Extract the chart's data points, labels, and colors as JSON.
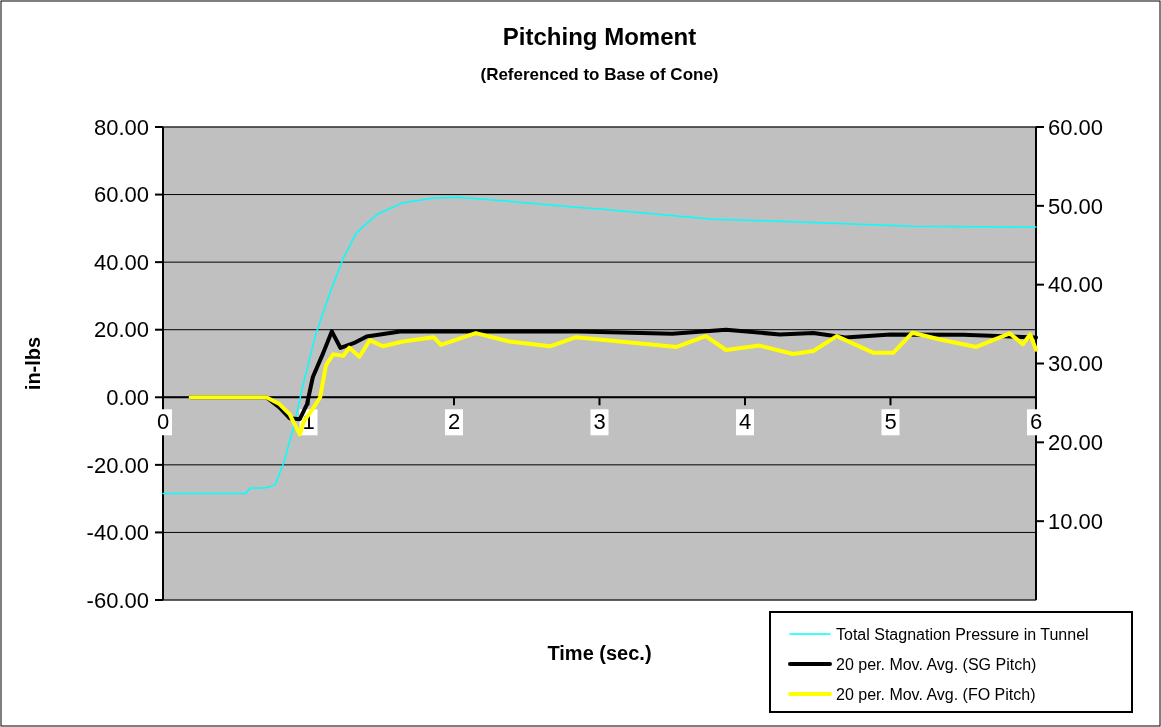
{
  "chart_data": {
    "type": "line",
    "title": "Pitching Moment",
    "subtitle": "(Referenced to Base of Cone)",
    "xlabel": "Time (sec.)",
    "ylabel": "in-lbs",
    "xlim": [
      0,
      6
    ],
    "xticks": [
      0,
      1,
      2,
      3,
      4,
      5,
      6
    ],
    "ylim": [
      -60,
      80
    ],
    "yticks": [
      {
        "value": -60,
        "label": "-60.00"
      },
      {
        "value": -40,
        "label": "-40.00"
      },
      {
        "value": -20,
        "label": "-20.00"
      },
      {
        "value": 0,
        "label": "0.00"
      },
      {
        "value": 20,
        "label": "20.00"
      },
      {
        "value": 40,
        "label": "40.00"
      },
      {
        "value": 60,
        "label": "60.00"
      },
      {
        "value": 80,
        "label": "80.00"
      }
    ],
    "y2lim": [
      0,
      60
    ],
    "y2ticks": [
      {
        "value": 10,
        "label": "10.00"
      },
      {
        "value": 20,
        "label": "20.00"
      },
      {
        "value": 30,
        "label": "30.00"
      },
      {
        "value": 40,
        "label": "40.00"
      },
      {
        "value": 50,
        "label": "50.00"
      },
      {
        "value": 60,
        "label": "60.00"
      }
    ],
    "grid": "y",
    "legend": "bottom right",
    "line_style": "solid",
    "series": [
      {
        "name": "Total Stagnation Pressure in Tunnel",
        "color": "#00ffff",
        "axis": "y2",
        "x": [
          0,
          0.57,
          0.6,
          0.7,
          0.77,
          0.83,
          0.9,
          0.96,
          1.05,
          1.15,
          1.24,
          1.33,
          1.47,
          1.65,
          1.86,
          2.02,
          2.43,
          2.86,
          3.0,
          3.78,
          4.46,
          5.15,
          6.0
        ],
        "values": [
          13.5,
          13.5,
          14.2,
          14.2,
          14.6,
          17.4,
          22.1,
          27.1,
          33.7,
          39.1,
          43.4,
          46.6,
          48.9,
          50.4,
          51.0,
          51.1,
          50.5,
          49.8,
          49.6,
          48.3,
          47.9,
          47.4,
          47.3
        ]
      },
      {
        "name": "20 per. Mov. Avg. (SG Pitch)",
        "color": "#000000",
        "x": [
          0.19,
          0.71,
          0.8,
          0.87,
          0.94,
          0.99,
          1.03,
          1.1,
          1.16,
          1.22,
          1.31,
          1.4,
          1.63,
          2.0,
          2.5,
          2.86,
          3.5,
          3.87,
          4.24,
          4.47,
          4.69,
          5.0,
          5.5,
          6.0
        ],
        "values": [
          0,
          0,
          -3,
          -6.2,
          -6.5,
          -2,
          6,
          13,
          19.5,
          14.6,
          16,
          18,
          19.5,
          19.5,
          19.5,
          19.5,
          18.8,
          20,
          18.6,
          19,
          17.7,
          18.6,
          18.5,
          17.7
        ]
      },
      {
        "name": "20 per. Mov. Avg. (FO Pitch)",
        "color": "#ffff00",
        "x": [
          0.19,
          0.71,
          0.8,
          0.87,
          0.94,
          0.97,
          1.02,
          1.08,
          1.12,
          1.17,
          1.24,
          1.28,
          1.35,
          1.42,
          1.51,
          1.65,
          1.86,
          1.91,
          2.15,
          2.38,
          2.66,
          2.84,
          3.53,
          3.73,
          3.87,
          4.1,
          4.33,
          4.47,
          4.63,
          4.88,
          5.02,
          5.15,
          5.34,
          5.59,
          5.82,
          5.91,
          5.96,
          6.0
        ],
        "values": [
          0,
          0,
          -2,
          -5,
          -11,
          -7,
          -4,
          0,
          9.5,
          12.7,
          12.3,
          14.7,
          12,
          16.9,
          15.1,
          16.5,
          17.8,
          15.5,
          19,
          16.5,
          15.1,
          17.8,
          14.9,
          18.1,
          14,
          15.3,
          12.8,
          13.7,
          18.1,
          13.2,
          13.2,
          19.1,
          17.1,
          14.9,
          18.9,
          15.7,
          18.6,
          14.1
        ]
      }
    ]
  }
}
